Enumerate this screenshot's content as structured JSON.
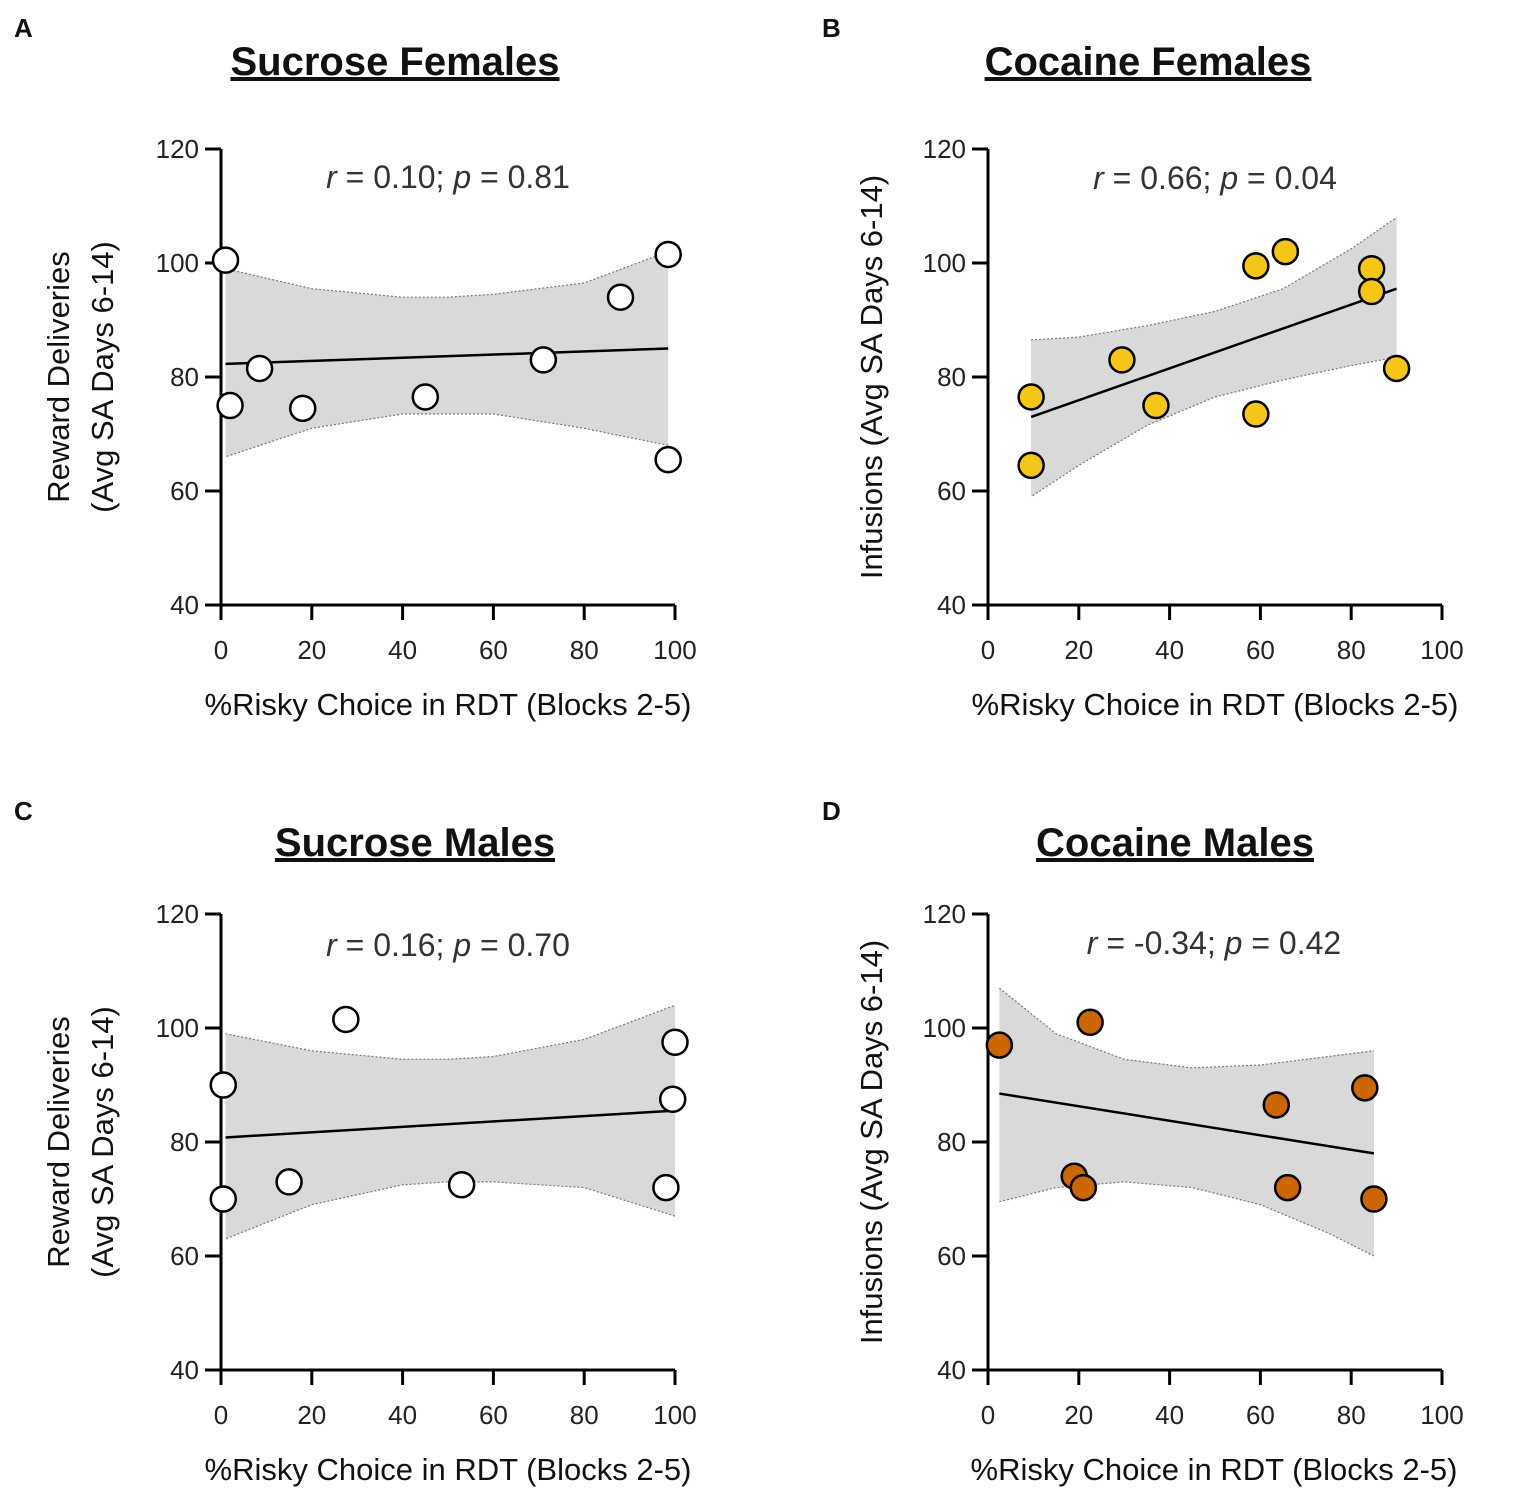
{
  "figure": {
    "colors": {
      "band": "#d9d9d9",
      "line": "#000000",
      "sucrose": "#ffffff",
      "cocaine_female": "#f5c518",
      "cocaine_male": "#cc6600"
    }
  },
  "chart_data": [
    {
      "type": "scatter",
      "panel": "A",
      "title": "Sucrose Females",
      "stat": {
        "r_label": "r",
        "r_value": " = 0.10; ",
        "p_label": "p",
        "p_value": " = 0.81"
      },
      "xlabel": "%Risky Choice in RDT (Blocks 2-5)",
      "ylabel": [
        "Reward Deliveries",
        "(Avg SA Days 6-14)"
      ],
      "xlim": [
        0,
        100
      ],
      "ylim": [
        40,
        120
      ],
      "xticks": [
        0,
        20,
        40,
        60,
        80,
        100
      ],
      "yticks": [
        40,
        60,
        80,
        100,
        120
      ],
      "marker_color": "#ffffff",
      "points": [
        [
          1,
          100.5
        ],
        [
          2,
          75
        ],
        [
          8.5,
          81.5
        ],
        [
          18,
          74.5
        ],
        [
          45,
          76.5
        ],
        [
          71,
          83
        ],
        [
          88,
          94
        ],
        [
          98.5,
          101.5
        ],
        [
          98.5,
          65.5
        ]
      ],
      "fit": {
        "x": [
          1,
          98.5
        ],
        "y": [
          82.3,
          85.0
        ]
      },
      "ci_band": {
        "x": [
          1,
          20,
          40,
          50,
          60,
          80,
          98.5
        ],
        "upper": [
          99,
          95.5,
          94,
          94,
          94.5,
          96.5,
          102
        ],
        "lower": [
          66,
          71,
          73.5,
          73.5,
          73.5,
          71,
          68
        ]
      }
    },
    {
      "type": "scatter",
      "panel": "B",
      "title": "Cocaine Females",
      "stat": {
        "r_label": "r",
        "r_value": " = 0.66; ",
        "p_label": "p",
        "p_value": " = 0.04"
      },
      "xlabel": "%Risky Choice in RDT (Blocks 2-5)",
      "ylabel": [
        "Infusions (Avg SA Days 6-14)"
      ],
      "xlim": [
        0,
        100
      ],
      "ylim": [
        40,
        120
      ],
      "xticks": [
        0,
        20,
        40,
        60,
        80,
        100
      ],
      "yticks": [
        40,
        60,
        80,
        100,
        120
      ],
      "marker_color": "#f5c518",
      "points": [
        [
          9.5,
          76.5
        ],
        [
          9.5,
          64.5
        ],
        [
          29.5,
          83
        ],
        [
          37,
          75
        ],
        [
          59,
          99.5
        ],
        [
          59,
          73.5
        ],
        [
          65.5,
          102
        ],
        [
          84.5,
          99
        ],
        [
          84.5,
          95
        ],
        [
          90,
          81.5
        ]
      ],
      "fit": {
        "x": [
          9.5,
          90
        ],
        "y": [
          73,
          95.5
        ]
      },
      "ci_band": {
        "x": [
          9.5,
          20,
          35,
          50,
          65,
          80,
          90
        ],
        "upper": [
          86.5,
          87,
          89,
          91.5,
          95.5,
          102.5,
          108
        ],
        "lower": [
          59,
          64.5,
          71.5,
          76.5,
          79.5,
          82,
          83.5
        ]
      }
    },
    {
      "type": "scatter",
      "panel": "C",
      "title": "Sucrose Males",
      "stat": {
        "r_label": "r",
        "r_value": " = 0.16; ",
        "p_label": "p",
        "p_value": " = 0.70"
      },
      "xlabel": "%Risky Choice in RDT (Blocks 2-5)",
      "ylabel": [
        "Reward Deliveries",
        "(Avg SA Days 6-14)"
      ],
      "xlim": [
        0,
        100
      ],
      "ylim": [
        40,
        120
      ],
      "xticks": [
        0,
        20,
        40,
        60,
        80,
        100
      ],
      "yticks": [
        40,
        60,
        80,
        100,
        120
      ],
      "marker_color": "#ffffff",
      "points": [
        [
          0.5,
          90
        ],
        [
          0.5,
          70
        ],
        [
          15,
          73
        ],
        [
          27.5,
          101.5
        ],
        [
          53,
          72.5
        ],
        [
          98,
          72
        ],
        [
          99.5,
          87.5
        ],
        [
          100,
          97.5
        ]
      ],
      "fit": {
        "x": [
          1,
          100
        ],
        "y": [
          80.8,
          85.5
        ]
      },
      "ci_band": {
        "x": [
          1,
          20,
          40,
          50,
          60,
          80,
          100
        ],
        "upper": [
          99,
          96,
          94.5,
          94.5,
          95,
          98,
          104
        ],
        "lower": [
          63,
          69,
          72.5,
          73,
          73,
          72,
          67
        ]
      }
    },
    {
      "type": "scatter",
      "panel": "D",
      "title": "Cocaine Males",
      "stat": {
        "r_label": "r",
        "r_value": " = -0.34; ",
        "p_label": "p",
        "p_value": " = 0.42"
      },
      "xlabel": "%Risky Choice in RDT (Blocks 2-5)",
      "ylabel": [
        "Infusions (Avg SA Days 6-14)"
      ],
      "xlim": [
        0,
        100
      ],
      "ylim": [
        40,
        120
      ],
      "xticks": [
        0,
        20,
        40,
        60,
        80,
        100
      ],
      "yticks": [
        40,
        60,
        80,
        100,
        120
      ],
      "marker_color": "#cc6600",
      "points": [
        [
          2.5,
          97
        ],
        [
          19,
          74
        ],
        [
          21,
          72
        ],
        [
          22.5,
          101
        ],
        [
          63.5,
          86.5
        ],
        [
          66,
          72
        ],
        [
          83,
          89.5
        ],
        [
          85,
          70
        ]
      ],
      "fit": {
        "x": [
          2.5,
          85
        ],
        "y": [
          88.5,
          78
        ]
      },
      "ci_band": {
        "x": [
          2.5,
          15,
          30,
          45,
          60,
          75,
          85
        ],
        "upper": [
          107,
          99,
          94.5,
          93,
          93.5,
          95,
          96
        ],
        "lower": [
          69.5,
          72,
          73,
          72,
          69,
          64,
          60
        ]
      }
    }
  ]
}
